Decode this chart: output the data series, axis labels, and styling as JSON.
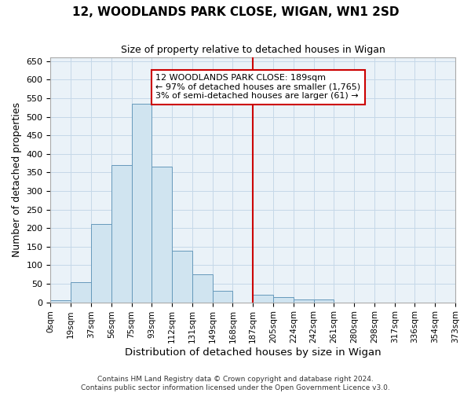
{
  "title": "12, WOODLANDS PARK CLOSE, WIGAN, WN1 2SD",
  "subtitle": "Size of property relative to detached houses in Wigan",
  "xlabel": "Distribution of detached houses by size in Wigan",
  "ylabel": "Number of detached properties",
  "bar_color": "#d0e4f0",
  "bar_edge_color": "#6699bb",
  "plot_bg_color": "#eaf2f8",
  "fig_bg_color": "#ffffff",
  "grid_color": "#c5d8e8",
  "bin_labels": [
    "0sqm",
    "19sqm",
    "37sqm",
    "56sqm",
    "75sqm",
    "93sqm",
    "112sqm",
    "131sqm",
    "149sqm",
    "168sqm",
    "187sqm",
    "205sqm",
    "224sqm",
    "242sqm",
    "261sqm",
    "280sqm",
    "298sqm",
    "317sqm",
    "336sqm",
    "354sqm",
    "373sqm"
  ],
  "bar_heights": [
    5,
    55,
    210,
    370,
    535,
    365,
    140,
    75,
    30,
    0,
    20,
    15,
    8,
    8,
    0,
    0,
    0,
    0,
    0,
    0
  ],
  "vline_index": 10,
  "vline_color": "#cc0000",
  "annotation_text": "12 WOODLANDS PARK CLOSE: 189sqm\n← 97% of detached houses are smaller (1,765)\n3% of semi-detached houses are larger (61) →",
  "annotation_box_color": "#ffffff",
  "annotation_box_edge": "#cc0000",
  "footer_line1": "Contains HM Land Registry data © Crown copyright and database right 2024.",
  "footer_line2": "Contains public sector information licensed under the Open Government Licence v3.0.",
  "ylim": [
    0,
    660
  ],
  "yticks": [
    0,
    50,
    100,
    150,
    200,
    250,
    300,
    350,
    400,
    450,
    500,
    550,
    600,
    650
  ]
}
